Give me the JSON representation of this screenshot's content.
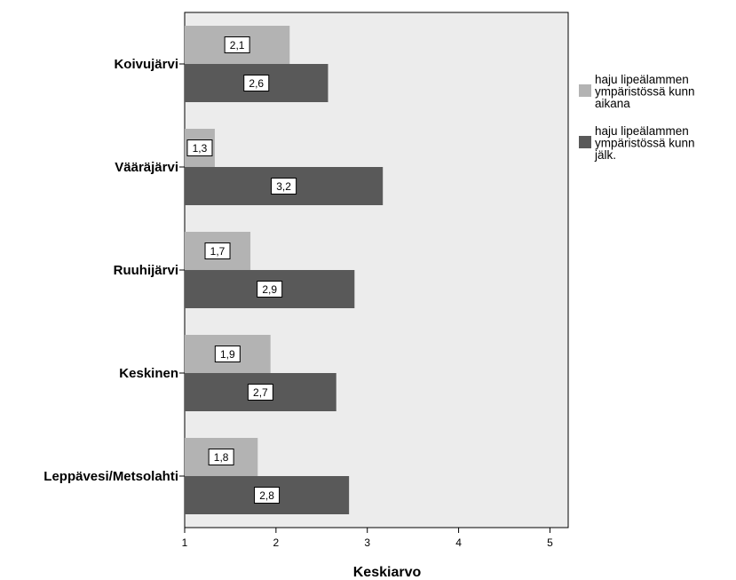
{
  "chart_data": {
    "type": "bar",
    "orientation": "horizontal",
    "categories": [
      "Koivujärvi",
      "Vääräjärvi",
      "Ruuhijärvi",
      "Keskinen",
      "Leppävesi/Metsolahti"
    ],
    "series": [
      {
        "name_lines": [
          "haju lipeälammen",
          "ympäristössä kunn",
          "aikana"
        ],
        "values": [
          2.15,
          1.33,
          1.72,
          1.94,
          1.8
        ],
        "labels": [
          "2,1",
          "1,3",
          "1,7",
          "1,9",
          "1,8"
        ],
        "color": "#b3b3b3"
      },
      {
        "name_lines": [
          "haju lipeälammen",
          "ympäristössä kunn",
          "jälk."
        ],
        "values": [
          2.57,
          3.17,
          2.86,
          2.66,
          2.8
        ],
        "labels": [
          "2,6",
          "3,2",
          "2,9",
          "2,7",
          "2,8"
        ],
        "color": "#595959"
      }
    ],
    "xlabel": "Keskiarvo",
    "xticks": [
      1,
      2,
      3,
      4,
      5
    ],
    "xlim": [
      1,
      5.2
    ],
    "grid": false,
    "legend_position": "right",
    "plot_background": "#ececec"
  }
}
